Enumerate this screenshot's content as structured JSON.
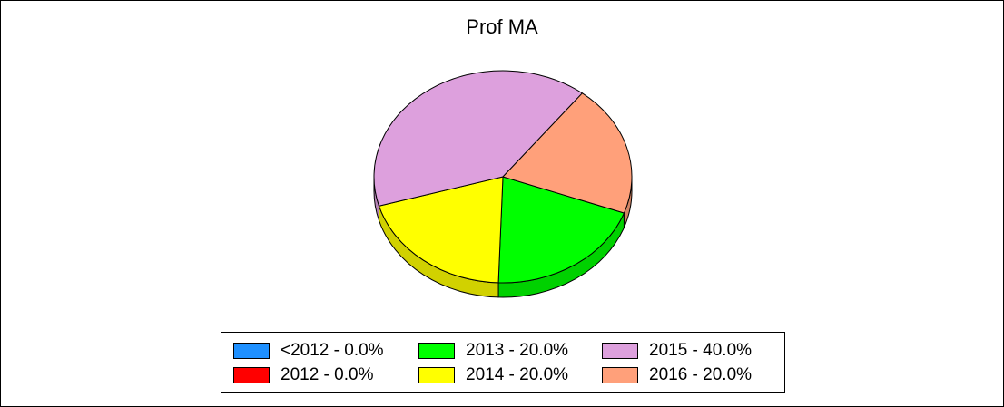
{
  "chart_data": {
    "type": "pie",
    "title": "Prof MA",
    "slices": [
      {
        "label": "<2012",
        "value": 0.0,
        "color": "#1E90FF",
        "legend": "<2012 - 0.0%"
      },
      {
        "label": "2012",
        "value": 0.0,
        "color": "#FF0000",
        "legend": "2012 - 0.0%"
      },
      {
        "label": "2013",
        "value": 20.0,
        "color": "#00FF00",
        "legend": "2013 - 20.0%"
      },
      {
        "label": "2014",
        "value": 20.0,
        "color": "#FFFF00",
        "legend": "2014 - 20.0%"
      },
      {
        "label": "2015",
        "value": 40.0,
        "color": "#DDA0DD",
        "legend": "2015 - 40.0%"
      },
      {
        "label": "2016",
        "value": 20.0,
        "color": "#FFA07A",
        "legend": "2016 - 20.0%"
      }
    ],
    "three_d": true,
    "legend_position": "bottom"
  }
}
